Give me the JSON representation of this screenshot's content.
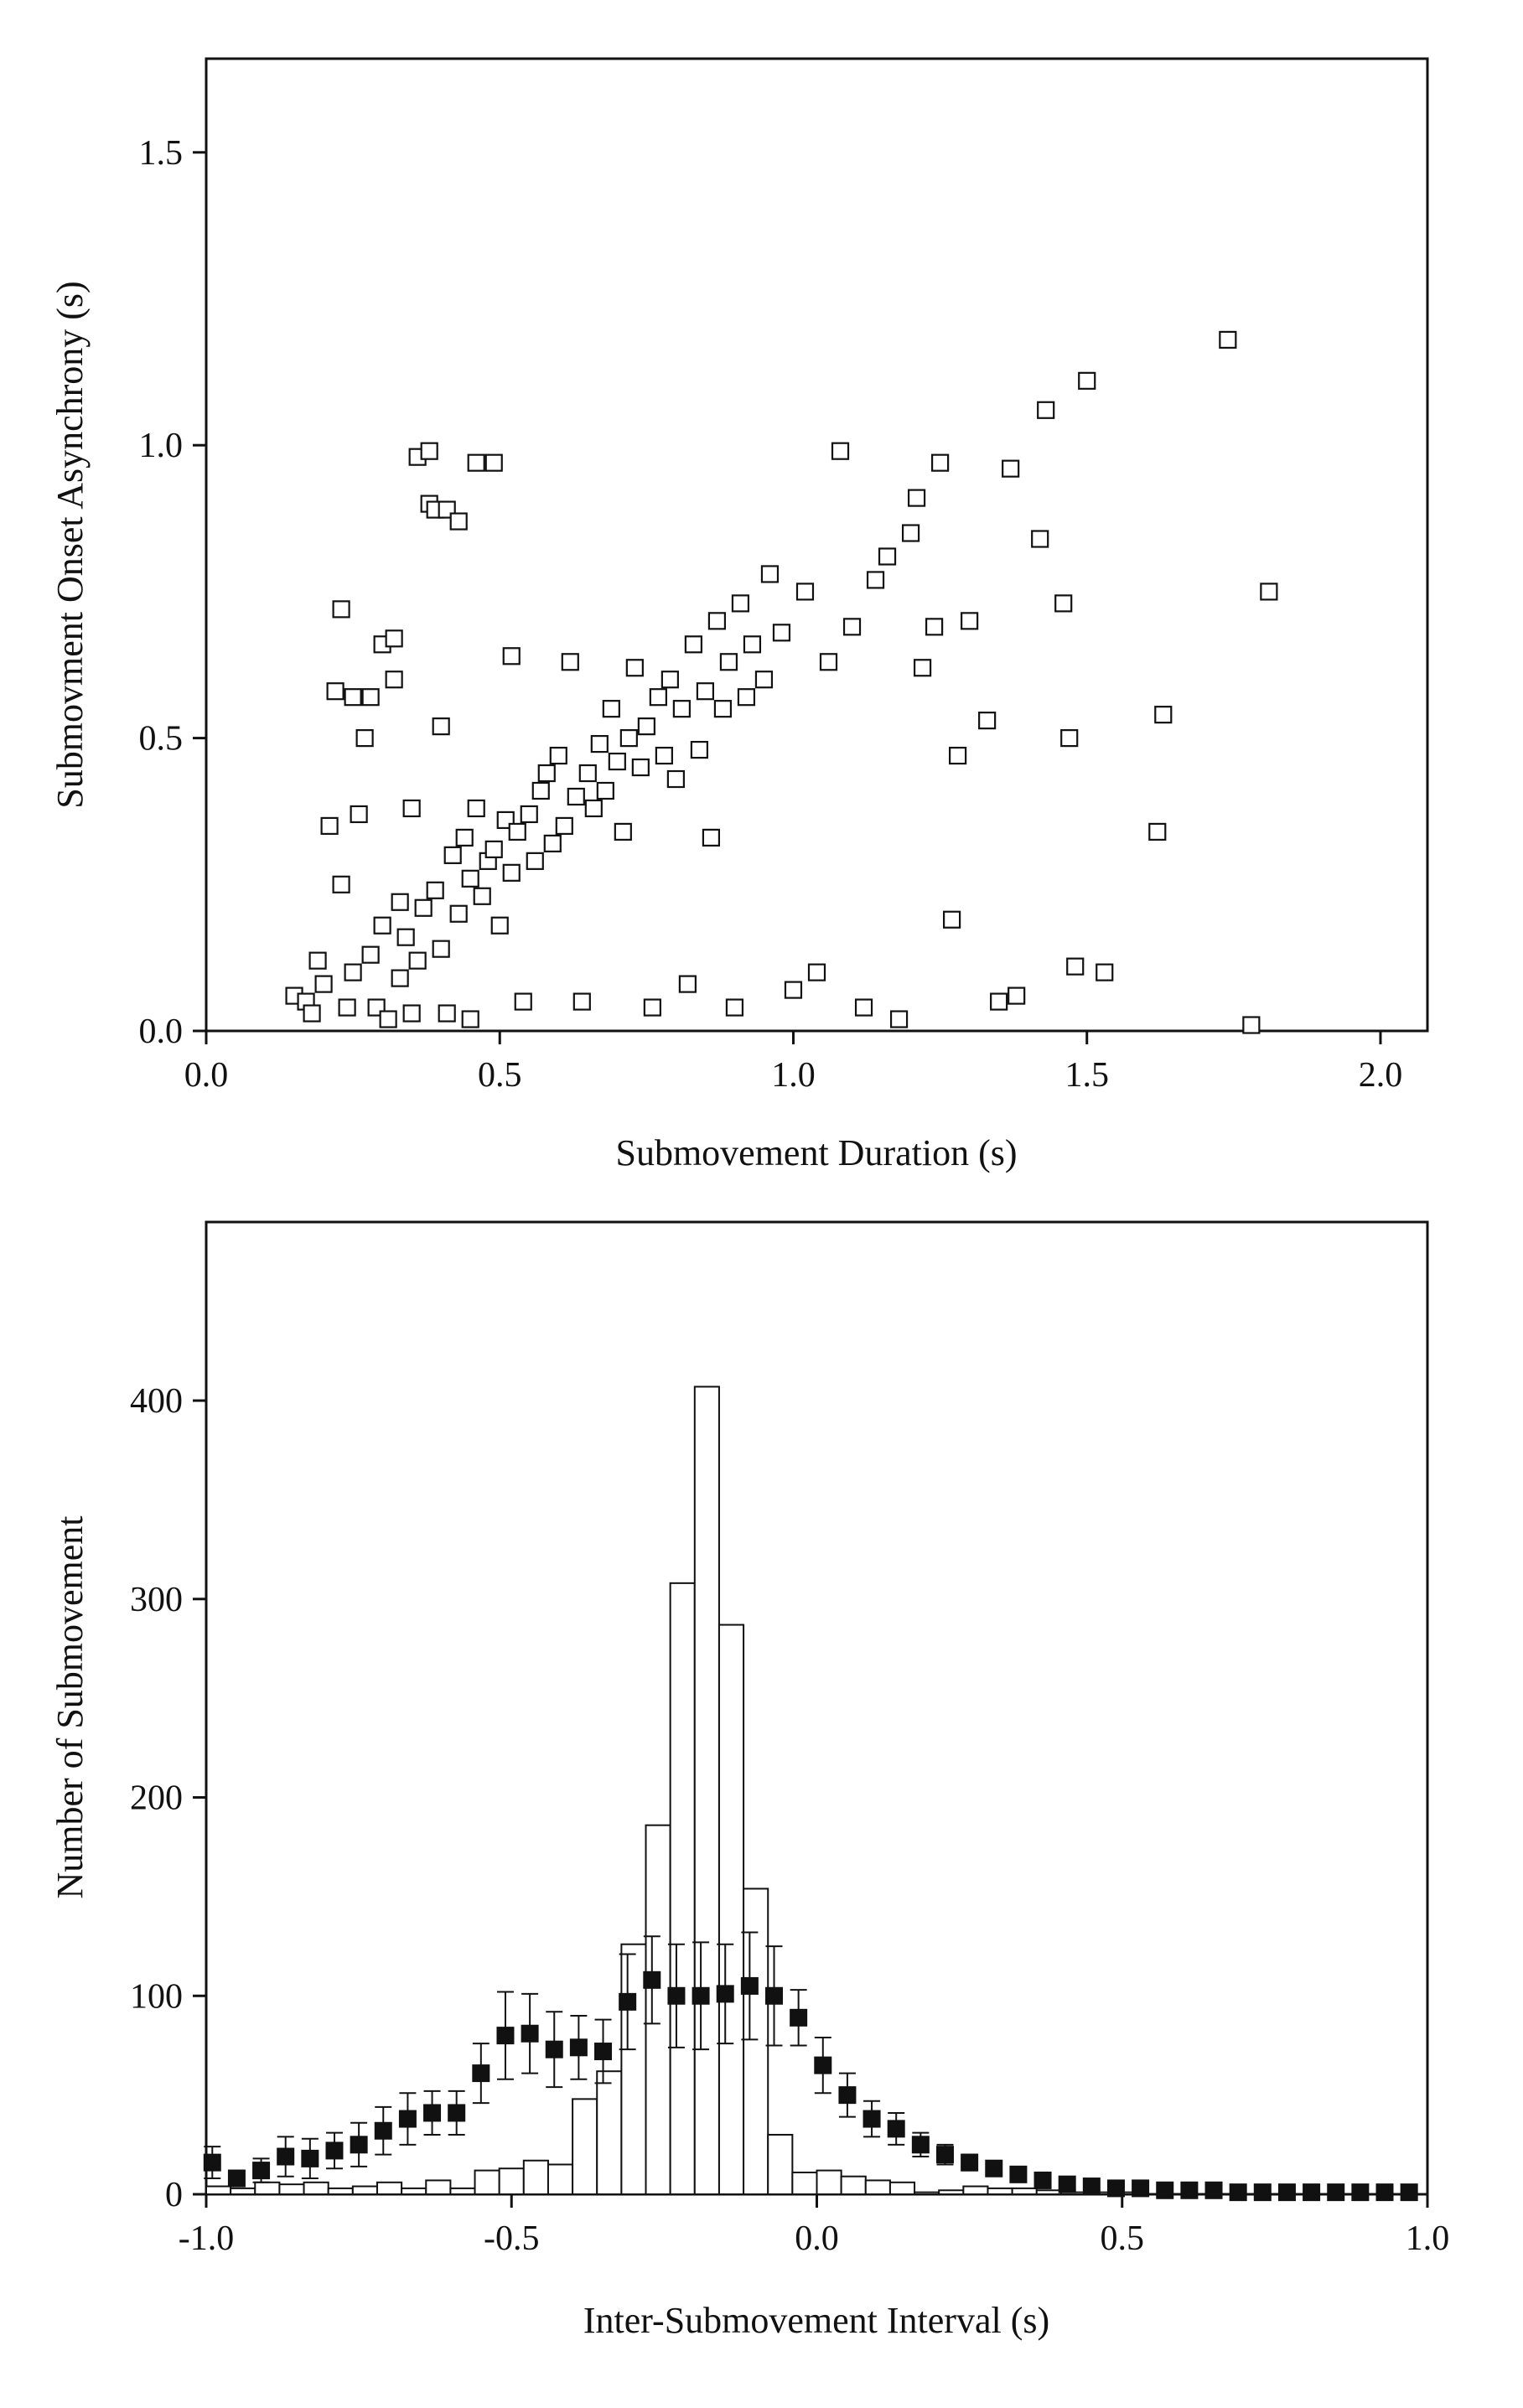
{
  "colors": {
    "ink": "#111111",
    "background": "#ffffff",
    "marker_fill_scatter": "#ffffff",
    "bar_fill": "#ffffff",
    "marker_fill_shuffled": "#111111"
  },
  "chart_data": [
    {
      "type": "scatter",
      "xlabel": "Submovement Duration (s)",
      "ylabel": "Submovment Onset Asynchrony (s)",
      "xlim": [
        0.0,
        2.08
      ],
      "ylim": [
        0.0,
        1.66
      ],
      "xticks": [
        0.0,
        0.5,
        1.0,
        1.5,
        2.0
      ],
      "xtick_labels": [
        "0.0",
        "0.5",
        "1.0",
        "1.5",
        "2.0"
      ],
      "yticks": [
        0.0,
        0.5,
        1.0,
        1.5
      ],
      "ytick_labels": [
        "0.0",
        "0.5",
        "1.0",
        "1.5"
      ],
      "grid": false,
      "marker": "open-square",
      "points": [
        [
          0.15,
          0.06
        ],
        [
          0.17,
          0.05
        ],
        [
          0.18,
          0.03
        ],
        [
          0.19,
          0.12
        ],
        [
          0.2,
          0.08
        ],
        [
          0.21,
          0.35
        ],
        [
          0.22,
          0.58
        ],
        [
          0.23,
          0.25
        ],
        [
          0.23,
          0.72
        ],
        [
          0.24,
          0.04
        ],
        [
          0.25,
          0.1
        ],
        [
          0.25,
          0.57
        ],
        [
          0.26,
          0.37
        ],
        [
          0.27,
          0.5
        ],
        [
          0.28,
          0.57
        ],
        [
          0.28,
          0.13
        ],
        [
          0.29,
          0.04
        ],
        [
          0.3,
          0.66
        ],
        [
          0.3,
          0.18
        ],
        [
          0.31,
          0.02
        ],
        [
          0.32,
          0.67
        ],
        [
          0.32,
          0.6
        ],
        [
          0.33,
          0.09
        ],
        [
          0.33,
          0.22
        ],
        [
          0.34,
          0.16
        ],
        [
          0.35,
          0.03
        ],
        [
          0.35,
          0.38
        ],
        [
          0.36,
          0.98
        ],
        [
          0.36,
          0.12
        ],
        [
          0.37,
          0.21
        ],
        [
          0.38,
          0.9
        ],
        [
          0.38,
          0.99
        ],
        [
          0.39,
          0.89
        ],
        [
          0.39,
          0.24
        ],
        [
          0.4,
          0.14
        ],
        [
          0.4,
          0.52
        ],
        [
          0.41,
          0.89
        ],
        [
          0.41,
          0.03
        ],
        [
          0.42,
          0.3
        ],
        [
          0.43,
          0.87
        ],
        [
          0.43,
          0.2
        ],
        [
          0.44,
          0.33
        ],
        [
          0.45,
          0.26
        ],
        [
          0.45,
          0.02
        ],
        [
          0.46,
          0.97
        ],
        [
          0.46,
          0.38
        ],
        [
          0.47,
          0.23
        ],
        [
          0.48,
          0.29
        ],
        [
          0.49,
          0.97
        ],
        [
          0.49,
          0.31
        ],
        [
          0.5,
          0.18
        ],
        [
          0.51,
          0.36
        ],
        [
          0.52,
          0.27
        ],
        [
          0.52,
          0.64
        ],
        [
          0.53,
          0.34
        ],
        [
          0.54,
          0.05
        ],
        [
          0.55,
          0.37
        ],
        [
          0.56,
          0.29
        ],
        [
          0.57,
          0.41
        ],
        [
          0.58,
          0.44
        ],
        [
          0.59,
          0.32
        ],
        [
          0.6,
          0.47
        ],
        [
          0.61,
          0.35
        ],
        [
          0.62,
          0.63
        ],
        [
          0.63,
          0.4
        ],
        [
          0.64,
          0.05
        ],
        [
          0.65,
          0.44
        ],
        [
          0.66,
          0.38
        ],
        [
          0.67,
          0.49
        ],
        [
          0.68,
          0.41
        ],
        [
          0.69,
          0.55
        ],
        [
          0.7,
          0.46
        ],
        [
          0.71,
          0.34
        ],
        [
          0.72,
          0.5
        ],
        [
          0.73,
          0.62
        ],
        [
          0.74,
          0.45
        ],
        [
          0.75,
          0.52
        ],
        [
          0.76,
          0.04
        ],
        [
          0.77,
          0.57
        ],
        [
          0.78,
          0.47
        ],
        [
          0.79,
          0.6
        ],
        [
          0.8,
          0.43
        ],
        [
          0.81,
          0.55
        ],
        [
          0.82,
          0.08
        ],
        [
          0.83,
          0.66
        ],
        [
          0.84,
          0.48
        ],
        [
          0.85,
          0.58
        ],
        [
          0.86,
          0.33
        ],
        [
          0.87,
          0.7
        ],
        [
          0.88,
          0.55
        ],
        [
          0.89,
          0.63
        ],
        [
          0.9,
          0.04
        ],
        [
          0.91,
          0.73
        ],
        [
          0.92,
          0.57
        ],
        [
          0.93,
          0.66
        ],
        [
          0.95,
          0.6
        ],
        [
          0.96,
          0.78
        ],
        [
          0.98,
          0.68
        ],
        [
          1.0,
          0.07
        ],
        [
          1.02,
          0.75
        ],
        [
          1.04,
          0.1
        ],
        [
          1.06,
          0.63
        ],
        [
          1.08,
          0.99
        ],
        [
          1.1,
          0.69
        ],
        [
          1.12,
          0.04
        ],
        [
          1.14,
          0.77
        ],
        [
          1.16,
          0.81
        ],
        [
          1.18,
          0.02
        ],
        [
          1.2,
          0.85
        ],
        [
          1.21,
          0.91
        ],
        [
          1.22,
          0.62
        ],
        [
          1.24,
          0.69
        ],
        [
          1.25,
          0.97
        ],
        [
          1.27,
          0.19
        ],
        [
          1.28,
          0.47
        ],
        [
          1.3,
          0.7
        ],
        [
          1.33,
          0.53
        ],
        [
          1.35,
          0.05
        ],
        [
          1.37,
          0.96
        ],
        [
          1.38,
          0.06
        ],
        [
          1.42,
          0.84
        ],
        [
          1.43,
          1.06
        ],
        [
          1.46,
          0.73
        ],
        [
          1.47,
          0.5
        ],
        [
          1.48,
          0.11
        ],
        [
          1.5,
          1.11
        ],
        [
          1.53,
          0.1
        ],
        [
          1.62,
          0.34
        ],
        [
          1.63,
          0.54
        ],
        [
          1.74,
          1.18
        ],
        [
          1.78,
          0.01
        ],
        [
          1.81,
          0.75
        ]
      ]
    },
    {
      "type": "bar",
      "xlabel": "Inter-Submovement Interval (s)",
      "ylabel": "Number of Submovement",
      "xlim": [
        -1.0,
        1.0
      ],
      "ylim": [
        0,
        490
      ],
      "xticks": [
        -1.0,
        -0.5,
        0.0,
        0.5,
        1.0
      ],
      "xtick_labels": [
        "-1.0",
        "-0.5",
        "0.0",
        "0.5",
        "1.0"
      ],
      "yticks": [
        0,
        100,
        200,
        300,
        400
      ],
      "ytick_labels": [
        "0",
        "100",
        "200",
        "300",
        "400"
      ],
      "grid": false,
      "bin_width": 0.04,
      "histogram": {
        "bin_centers": [
          -0.98,
          -0.94,
          -0.9,
          -0.86,
          -0.82,
          -0.78,
          -0.74,
          -0.7,
          -0.66,
          -0.62,
          -0.58,
          -0.54,
          -0.5,
          -0.46,
          -0.42,
          -0.38,
          -0.34,
          -0.3,
          -0.26,
          -0.22,
          -0.18,
          -0.14,
          -0.1,
          -0.06,
          -0.02,
          0.02,
          0.06,
          0.1,
          0.14,
          0.18,
          0.22,
          0.26,
          0.3,
          0.34,
          0.38,
          0.42,
          0.46,
          0.5,
          0.54,
          0.58,
          0.62,
          0.66,
          0.7,
          0.74,
          0.78,
          0.82,
          0.86,
          0.9,
          0.94,
          0.98
        ],
        "counts": [
          4,
          3,
          6,
          5,
          6,
          3,
          4,
          6,
          3,
          7,
          3,
          12,
          13,
          17,
          15,
          48,
          62,
          126,
          186,
          308,
          407,
          287,
          154,
          30,
          11,
          12,
          9,
          7,
          6,
          1,
          2,
          4,
          3,
          3,
          2,
          1,
          1,
          1,
          0,
          0,
          0,
          0,
          0,
          0,
          0,
          0,
          0,
          0,
          0,
          0
        ]
      },
      "shuffled_means": {
        "x": [
          -0.99,
          -0.95,
          -0.91,
          -0.87,
          -0.83,
          -0.79,
          -0.75,
          -0.71,
          -0.67,
          -0.63,
          -0.59,
          -0.55,
          -0.51,
          -0.47,
          -0.43,
          -0.39,
          -0.35,
          -0.31,
          -0.27,
          -0.23,
          -0.19,
          -0.15,
          -0.11,
          -0.07,
          -0.03,
          0.01,
          0.05,
          0.09,
          0.13,
          0.17,
          0.21,
          0.25,
          0.29,
          0.33,
          0.37,
          0.41,
          0.45,
          0.49,
          0.53,
          0.57,
          0.61,
          0.65,
          0.69,
          0.73,
          0.77,
          0.81,
          0.85,
          0.89,
          0.93,
          0.97
        ],
        "y": [
          16,
          8,
          12,
          19,
          18,
          22,
          25,
          32,
          38,
          41,
          41,
          61,
          80,
          81,
          73,
          74,
          72,
          97,
          108,
          100,
          100,
          101,
          105,
          100,
          89,
          65,
          50,
          38,
          33,
          25,
          20,
          16,
          13,
          10,
          7,
          5,
          4,
          3,
          3,
          2,
          2,
          2,
          1,
          1,
          1,
          1,
          1,
          1,
          1,
          1
        ],
        "err": [
          8,
          4,
          6,
          10,
          10,
          9,
          11,
          12,
          13,
          11,
          11,
          15,
          22,
          20,
          19,
          16,
          16,
          24,
          22,
          26,
          27,
          25,
          27,
          25,
          14,
          14,
          11,
          9,
          8,
          6,
          5,
          4,
          3,
          3,
          2,
          2,
          2,
          1,
          1,
          1,
          1,
          1,
          1,
          1,
          1,
          1,
          1,
          1,
          1,
          1
        ]
      }
    }
  ]
}
